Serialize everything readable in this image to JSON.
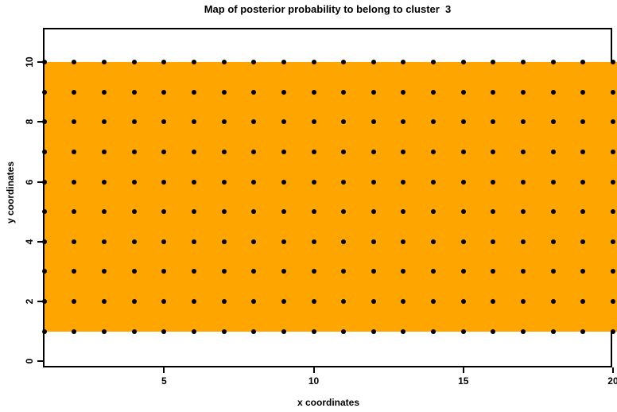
{
  "figure": {
    "title": "Map of posterior probability to belong to cluster  3",
    "xlabel": "x coordinates",
    "ylabel": "y coordinates"
  },
  "colors": {
    "fill": "#FFA500",
    "marker": "#000000",
    "axis": "#000000",
    "background": "#FFFFFF",
    "text": "#000000"
  },
  "chart_data": {
    "type": "heatmap",
    "title": "Map of posterior probability to belong to cluster  3",
    "xlabel": "x coordinates",
    "ylabel": "y coordinates",
    "x": [
      1,
      2,
      3,
      4,
      5,
      6,
      7,
      8,
      9,
      10,
      11,
      12,
      13,
      14,
      15,
      16,
      17,
      18,
      19,
      20
    ],
    "y": [
      1,
      2,
      3,
      4,
      5,
      6,
      7,
      8,
      9,
      10
    ],
    "uniform_fill_color": "#FFA500",
    "fill_region": {
      "x_min": 1,
      "x_max": 20.2,
      "y_min": 1,
      "y_max": 10
    },
    "points": {
      "marker": "filled-circle",
      "color": "#000000",
      "description": "dot at every integer (x,y) grid node, x 1-20, y 1-10"
    },
    "x_ticks": [
      5,
      10,
      15,
      20
    ],
    "y_ticks": [
      0,
      2,
      4,
      6,
      8,
      10
    ],
    "axis_ranges": {
      "x": [
        1,
        20
      ],
      "y": [
        0,
        11.35
      ]
    },
    "grid": false,
    "legend": "none"
  }
}
